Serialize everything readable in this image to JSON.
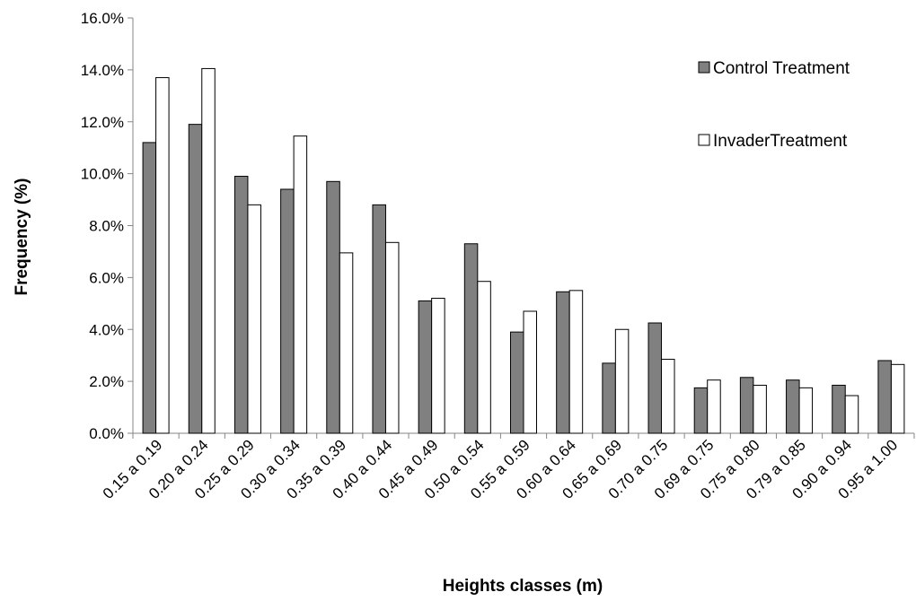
{
  "chart_data": {
    "type": "bar",
    "title": "",
    "xlabel": "Heights classes (m)",
    "ylabel": "Frequency (%)",
    "ylim": [
      0,
      0.16
    ],
    "yticks": [
      0,
      0.02,
      0.04,
      0.06,
      0.08,
      0.1,
      0.12,
      0.14,
      0.16
    ],
    "ytick_labels": [
      "0.0%",
      "2.0%",
      "4.0%",
      "6.0%",
      "8.0%",
      "10.0%",
      "12.0%",
      "14.0%",
      "16.0%"
    ],
    "grid": false,
    "legend_position": "top-right",
    "categories": [
      "0.15 a 0.19",
      "0.20 a 0.24",
      "0.25 a 0.29",
      "0.30 a 0.34",
      "0.35 a 0.39",
      "0.40 a 0.44",
      "0.45 a 0.49",
      "0.50 a 0.54",
      "0.55 a 0.59",
      "0.60 a 0.64",
      "0.65 a 0.69",
      "0.70 a 0.75",
      "0.69 a 0.75",
      "0.75 a 0.80",
      "0.79 a 0.85",
      "0.90 a 0.94",
      "0.95 a 1.00"
    ],
    "series": [
      {
        "name": "Control Treatment",
        "color": "#808080",
        "values": [
          0.112,
          0.119,
          0.099,
          0.094,
          0.097,
          0.088,
          0.051,
          0.073,
          0.039,
          0.0545,
          0.027,
          0.0425,
          0.0175,
          0.0215,
          0.0205,
          0.0185,
          0.028
        ]
      },
      {
        "name": "InvaderTreatment",
        "color": "#ffffff",
        "values": [
          0.137,
          0.1405,
          0.088,
          0.1145,
          0.0695,
          0.0735,
          0.052,
          0.0585,
          0.047,
          0.055,
          0.04,
          0.0285,
          0.0205,
          0.0185,
          0.0175,
          0.0145,
          0.0265
        ]
      }
    ]
  }
}
